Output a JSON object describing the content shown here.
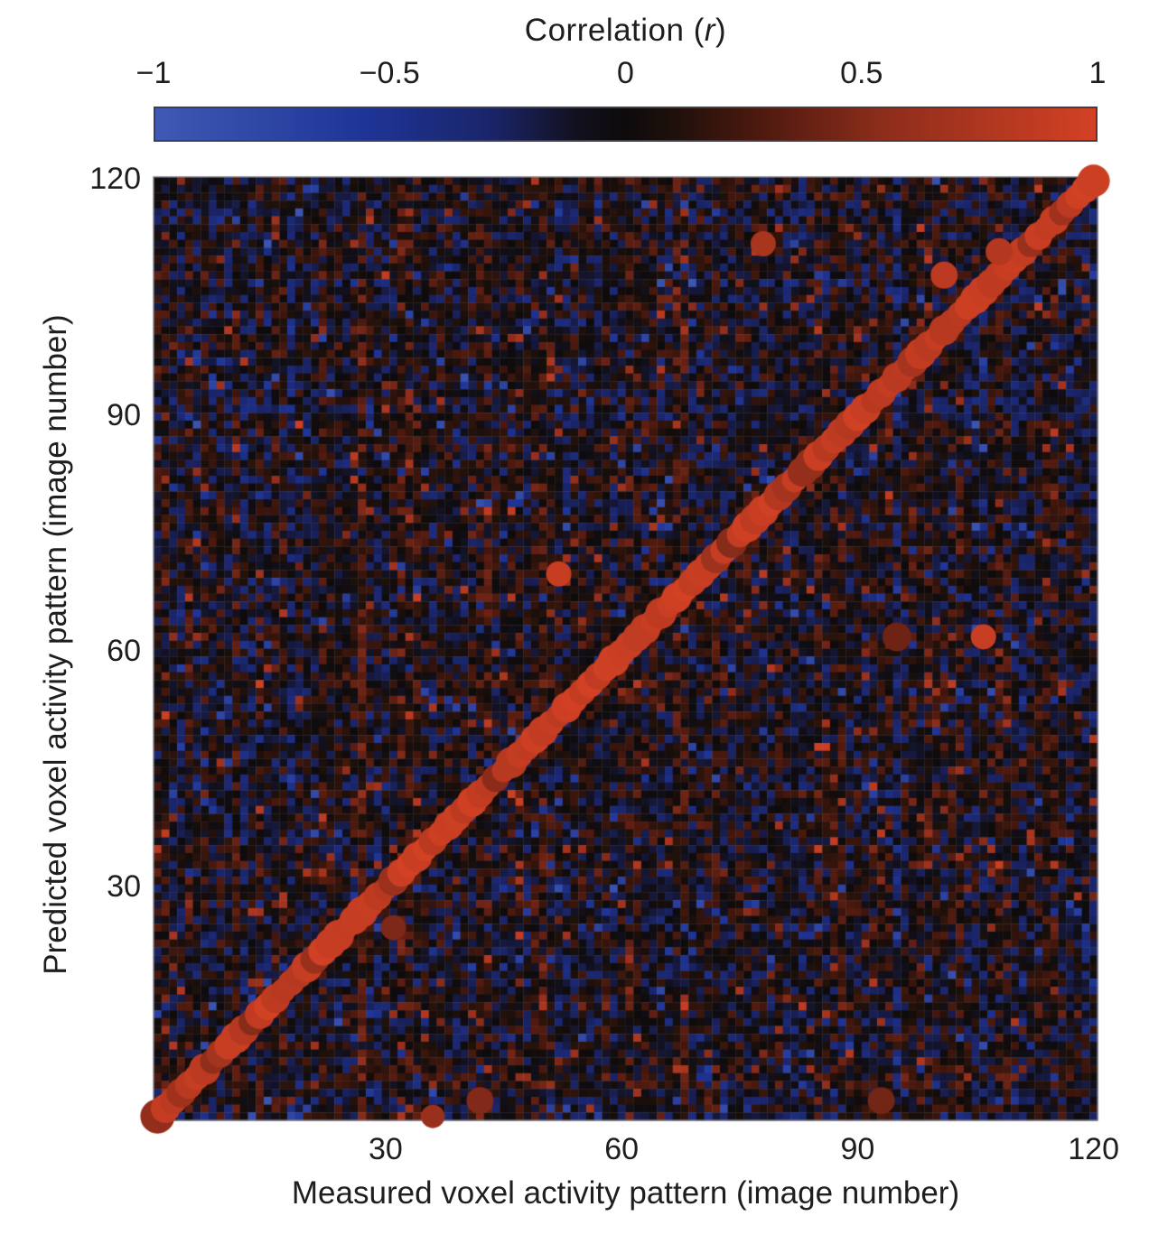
{
  "figure": {
    "title_prefix": "Correlation (",
    "title_italic": "r",
    "title_suffix": ")"
  },
  "chart_data": {
    "type": "heatmap",
    "title": "Correlation (r)",
    "xlabel": "Measured voxel activity pattern (image number)",
    "ylabel": "Predicted voxel activity pattern (image number)",
    "n_images": 120,
    "x_range": [
      1,
      120
    ],
    "y_range": [
      1,
      120
    ],
    "x_ticks": [
      30,
      60,
      90,
      120
    ],
    "y_ticks": [
      30,
      60,
      90,
      120
    ],
    "grid": false,
    "legend_position": "none",
    "colorbar": {
      "position": "top",
      "ticks": [
        "−1",
        "−0.5",
        "0",
        "0.5",
        "1"
      ],
      "tick_values": [
        -1,
        -0.5,
        0,
        0.5,
        1
      ],
      "stops": [
        {
          "t": -1.0,
          "color": "#4059b4"
        },
        {
          "t": -0.55,
          "color": "#1e3496"
        },
        {
          "t": -0.28,
          "color": "#1a2468"
        },
        {
          "t": -0.1,
          "color": "#12101c"
        },
        {
          "t": 0.0,
          "color": "#0e0b0c"
        },
        {
          "t": 0.1,
          "color": "#1e100b"
        },
        {
          "t": 0.28,
          "color": "#4c190e"
        },
        {
          "t": 0.55,
          "color": "#8e2d1b"
        },
        {
          "t": 1.0,
          "color": "#d34124"
        }
      ]
    },
    "matrix": {
      "description": "120×120 matrix of correlations between each measured voxel activity pattern and each predicted voxel activity pattern; off-diagonal background is noise near r≈0 (≈ −0.6 to +0.6) on a near-black field with faint vertical column banding of blue/red cells",
      "noise_seed": 42,
      "noise_spread": 0.62,
      "column_band_bias": 0.22,
      "row_band_bias": 0.12,
      "outlier_prob": 0.12
    },
    "diagonal": {
      "marker": "circle",
      "note": "Matched (identical image number) pairs are highlighted with red circular markers along the identity diagonal",
      "r_typical": "≈0.8–1.0 (bright red), with occasional darker markers ≈0.5–0.7",
      "first_point": {
        "x": 1,
        "y": 1,
        "r": 0.58
      },
      "last_point": {
        "x": 120,
        "y": 120,
        "r": 0.95
      }
    },
    "off_diagonal_dots": [
      {
        "x": 36,
        "y": 1,
        "r": 0.62,
        "size": 13
      },
      {
        "x": 42,
        "y": 3,
        "r": 0.5,
        "size": 15
      },
      {
        "x": 93,
        "y": 3,
        "r": 0.44,
        "size": 15
      },
      {
        "x": 31,
        "y": 25,
        "r": 0.48,
        "size": 14
      },
      {
        "x": 52,
        "y": 70,
        "r": 0.92,
        "size": 14
      },
      {
        "x": 95,
        "y": 62,
        "r": 0.42,
        "size": 16
      },
      {
        "x": 106,
        "y": 62,
        "r": 0.93,
        "size": 14
      },
      {
        "x": 78,
        "y": 112,
        "r": 0.72,
        "size": 14
      },
      {
        "x": 101,
        "y": 108,
        "r": 0.85,
        "size": 15
      },
      {
        "x": 108,
        "y": 111,
        "r": 0.8,
        "size": 15
      }
    ]
  }
}
